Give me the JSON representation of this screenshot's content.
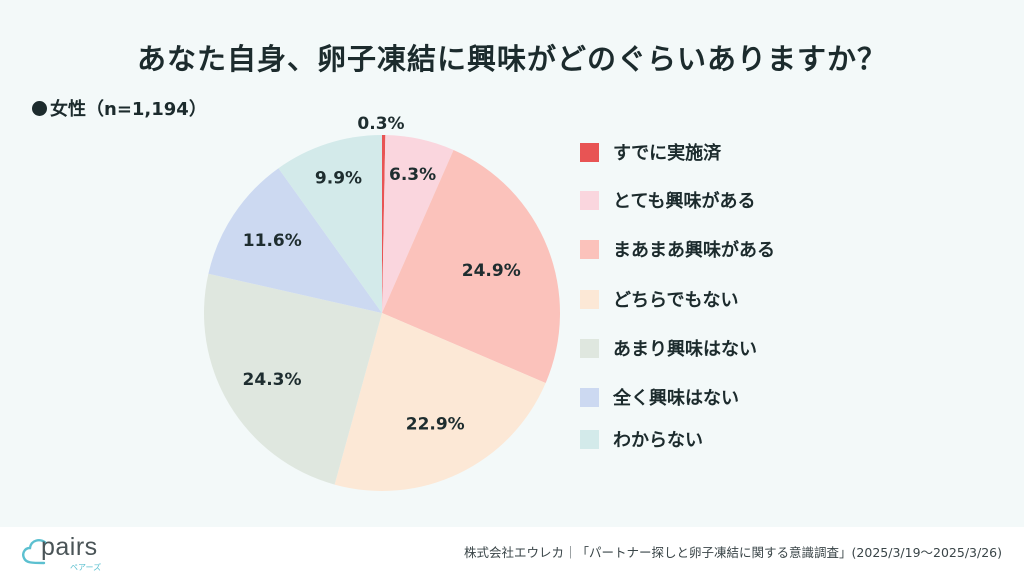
{
  "title": "あなた自身、卵子凍結に興味がどのぐらいありますか？",
  "subtitle": "女性（n=1,194）",
  "chart_data": {
    "type": "pie",
    "title": "あなた自身、卵子凍結に興味がどのぐらいありますか？",
    "subtitle": "女性（n=1,194）",
    "start": "12 o'clock, clockwise",
    "unit": "%",
    "slices": [
      {
        "label": "すでに実施済",
        "value": 0.3,
        "color": "#e85454"
      },
      {
        "label": "とても興味がある",
        "value": 6.3,
        "color": "#fad6de"
      },
      {
        "label": "まあまあ興味がある",
        "value": 24.9,
        "color": "#fbc2bb"
      },
      {
        "label": "どちらでもない",
        "value": 22.9,
        "color": "#fce8d6"
      },
      {
        "label": "あまり興味はない",
        "value": 24.3,
        "color": "#dfe7df"
      },
      {
        "label": "全く興味はない",
        "value": 11.6,
        "color": "#ccd9f1"
      },
      {
        "label": "わからない",
        "value": 9.9,
        "color": "#d3eaea"
      }
    ],
    "data_labels": [
      "0.3%",
      "6.3%",
      "24.9%",
      "22.9%",
      "24.3%",
      "11.6%",
      "9.9%"
    ],
    "legend": "right"
  },
  "footer": {
    "logo_text": "pairs",
    "logo_sub": "ペアーズ",
    "source": "株式会社エウレカ｜「パートナー探しと卵子凍結に関する意識調査」(2025/3/19〜2025/3/26)"
  }
}
